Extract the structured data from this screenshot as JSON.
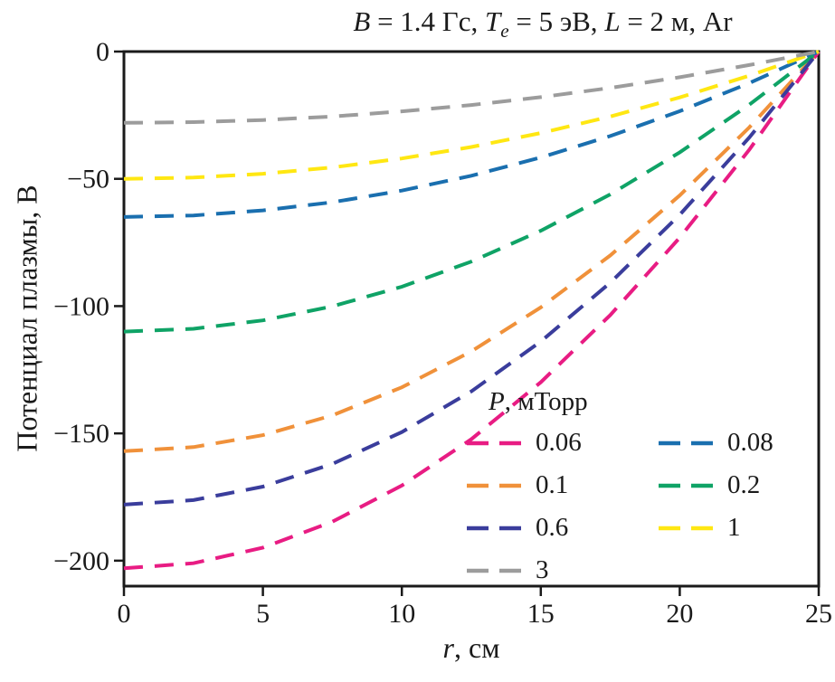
{
  "figure": {
    "background": "#ffffff",
    "axis_color": "#1a1a1a"
  },
  "chart_data": {
    "type": "line",
    "line_style": "dashed",
    "grid": false,
    "title": "B = 1.4 Гс, Te = 5 эВ, L = 2 м, Ar",
    "title_parts": [
      {
        "text": "B",
        "italic": true
      },
      {
        "text": " = 1.4 Гс, "
      },
      {
        "text": "T",
        "italic": true
      },
      {
        "text": "e",
        "italic": true,
        "subscript": true
      },
      {
        "text": " = 5 эВ, "
      },
      {
        "text": "L",
        "italic": true
      },
      {
        "text": " = 2 м, Ar"
      }
    ],
    "xlabel": "r, см",
    "xlabel_parts": [
      {
        "text": "r",
        "italic": true
      },
      {
        "text": ", см"
      }
    ],
    "ylabel": "Потенциал плазмы, В",
    "xlim": [
      0,
      25
    ],
    "ylim": [
      -210,
      0
    ],
    "xticks": [
      0,
      5,
      10,
      15,
      20,
      25
    ],
    "yticks": [
      0,
      -50,
      -100,
      -150,
      -200
    ],
    "x": [
      0,
      2.5,
      5,
      7.5,
      10,
      12.5,
      15,
      17.5,
      20,
      22.5,
      25
    ],
    "series": [
      {
        "name": "0.06",
        "color": "#e81c83",
        "values": [
          -203,
          -201.0,
          -194.9,
          -184.7,
          -170.5,
          -152.3,
          -129.9,
          -103.5,
          -73.1,
          -38.6,
          0
        ]
      },
      {
        "name": "0.08",
        "color": "#1a6faf",
        "values": [
          -65,
          -64.4,
          -62.4,
          -59.2,
          -54.6,
          -48.8,
          -41.6,
          -33.2,
          -23.4,
          -12.4,
          0
        ]
      },
      {
        "name": "0.1",
        "color": "#f0913a",
        "values": [
          -157,
          -155.4,
          -150.7,
          -142.9,
          -131.9,
          -117.8,
          -100.5,
          -80.1,
          -56.5,
          -29.8,
          0
        ]
      },
      {
        "name": "0.2",
        "color": "#0fa366",
        "values": [
          -110,
          -108.9,
          -105.6,
          -100.1,
          -92.4,
          -82.5,
          -70.4,
          -56.1,
          -39.6,
          -20.9,
          0
        ]
      },
      {
        "name": "0.6",
        "color": "#3a3d9c",
        "values": [
          -178,
          -176.2,
          -170.9,
          -162.0,
          -149.5,
          -133.5,
          -113.9,
          -90.8,
          -64.1,
          -33.8,
          0
        ]
      },
      {
        "name": "1",
        "color": "#ffe712",
        "values": [
          -50,
          -49.5,
          -48.0,
          -45.5,
          -42.0,
          -37.5,
          -32.0,
          -25.5,
          -18.0,
          -9.5,
          0
        ]
      },
      {
        "name": "3",
        "color": "#9c9c9c",
        "values": [
          -28,
          -27.7,
          -26.9,
          -25.5,
          -23.5,
          -21.0,
          -17.9,
          -14.3,
          -10.1,
          -5.3,
          0
        ]
      }
    ],
    "legend": {
      "title": "P, мТорр",
      "title_parts": [
        {
          "text": "P",
          "italic": true
        },
        {
          "text": ", мТорр"
        }
      ],
      "position": "lower-right-inside",
      "columns": [
        [
          "0.06",
          "0.1",
          "0.6",
          "3"
        ],
        [
          "0.08",
          "0.2",
          "1"
        ]
      ]
    }
  }
}
